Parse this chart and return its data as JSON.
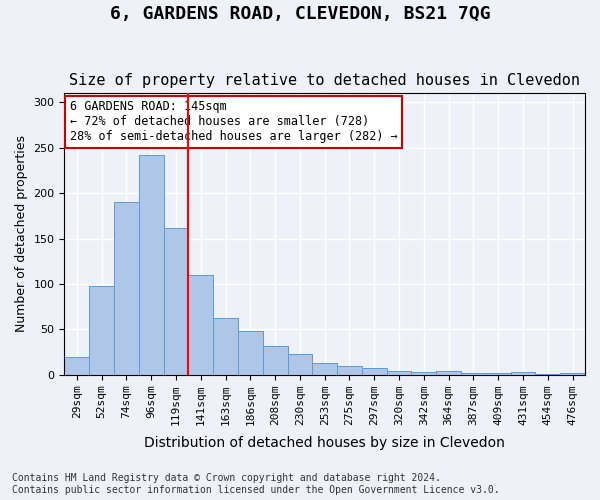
{
  "title": "6, GARDENS ROAD, CLEVEDON, BS21 7QG",
  "subtitle": "Size of property relative to detached houses in Clevedon",
  "xlabel": "Distribution of detached houses by size in Clevedon",
  "ylabel": "Number of detached properties",
  "categories": [
    "29sqm",
    "52sqm",
    "74sqm",
    "96sqm",
    "119sqm",
    "141sqm",
    "163sqm",
    "186sqm",
    "208sqm",
    "230sqm",
    "253sqm",
    "275sqm",
    "297sqm",
    "320sqm",
    "342sqm",
    "364sqm",
    "387sqm",
    "409sqm",
    "431sqm",
    "454sqm",
    "476sqm"
  ],
  "values": [
    19,
    98,
    190,
    242,
    162,
    110,
    62,
    48,
    32,
    23,
    13,
    10,
    7,
    4,
    3,
    4,
    2,
    2,
    3,
    1,
    2
  ],
  "bar_color": "#aec6e8",
  "bar_edge_color": "#5b9bd5",
  "red_line_index": 5,
  "annotation_line1": "6 GARDENS ROAD: 145sqm",
  "annotation_line2": "← 72% of detached houses are smaller (728)",
  "annotation_line3": "28% of semi-detached houses are larger (282) →",
  "annotation_box_color": "#ffffff",
  "annotation_box_edge": "#cc0000",
  "ylim": [
    0,
    310
  ],
  "yticks": [
    0,
    50,
    100,
    150,
    200,
    250,
    300
  ],
  "title_fontsize": 13,
  "subtitle_fontsize": 11,
  "xlabel_fontsize": 10,
  "ylabel_fontsize": 9,
  "tick_fontsize": 8,
  "footer_text": "Contains HM Land Registry data © Crown copyright and database right 2024.\nContains public sector information licensed under the Open Government Licence v3.0.",
  "background_color": "#eef2f8",
  "plot_bg_color": "#eef2f8",
  "grid_color": "#ffffff"
}
